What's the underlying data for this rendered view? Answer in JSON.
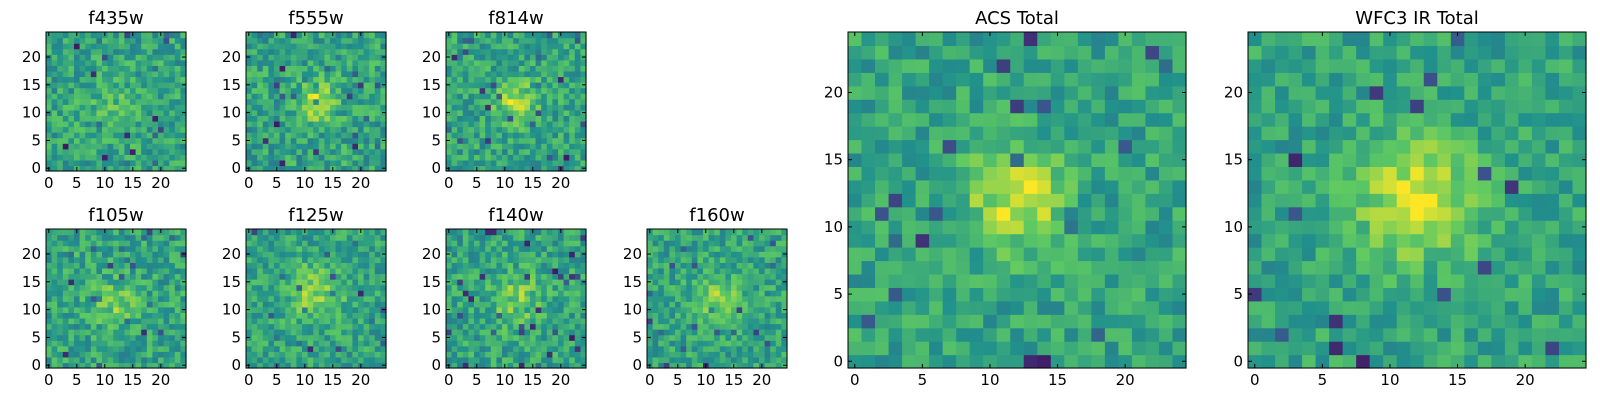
{
  "colormap": [
    "#440154",
    "#3b528b",
    "#21918c",
    "#5ec962",
    "#fde725"
  ],
  "chart_data": [
    {
      "type": "heatmap",
      "title": "f435w",
      "xlim": [
        0,
        24
      ],
      "ylim": [
        0,
        24
      ],
      "xticks": [
        "0",
        "5",
        "10",
        "15",
        "20"
      ],
      "yticks": [
        "0",
        "5",
        "10",
        "15",
        "20"
      ],
      "grid": false,
      "peak": {
        "x": 12,
        "y": 11,
        "amplitude": 0.1,
        "width": 3.5
      },
      "noise": 0.16,
      "seed": 11
    },
    {
      "type": "heatmap",
      "title": "f555w",
      "xlim": [
        0,
        24
      ],
      "ylim": [
        0,
        24
      ],
      "xticks": [
        "0",
        "5",
        "10",
        "15",
        "20"
      ],
      "yticks": [
        "0",
        "5",
        "10",
        "15",
        "20"
      ],
      "grid": false,
      "peak": {
        "x": 12,
        "y": 12,
        "amplitude": 0.28,
        "width": 2.6
      },
      "noise": 0.17,
      "seed": 23
    },
    {
      "type": "heatmap",
      "title": "f814w",
      "xlim": [
        0,
        24
      ],
      "ylim": [
        0,
        24
      ],
      "xticks": [
        "0",
        "5",
        "10",
        "15",
        "20"
      ],
      "yticks": [
        "0",
        "5",
        "10",
        "15",
        "20"
      ],
      "grid": false,
      "peak": {
        "x": 12,
        "y": 12,
        "amplitude": 0.3,
        "width": 2.6
      },
      "noise": 0.16,
      "seed": 37
    },
    {
      "type": "heatmap",
      "title": "f105w",
      "xlim": [
        0,
        24
      ],
      "ylim": [
        0,
        24
      ],
      "xticks": [
        "0",
        "5",
        "10",
        "15",
        "20"
      ],
      "yticks": [
        "0",
        "5",
        "10",
        "15",
        "20"
      ],
      "grid": false,
      "peak": {
        "x": 12,
        "y": 11,
        "amplitude": 0.18,
        "width": 3.0
      },
      "noise": 0.16,
      "seed": 41
    },
    {
      "type": "heatmap",
      "title": "f125w",
      "xlim": [
        0,
        24
      ],
      "ylim": [
        0,
        24
      ],
      "xticks": [
        "0",
        "5",
        "10",
        "15",
        "20"
      ],
      "yticks": [
        "0",
        "5",
        "10",
        "15",
        "20"
      ],
      "grid": false,
      "peak": {
        "x": 12,
        "y": 13,
        "amplitude": 0.22,
        "width": 3.5
      },
      "noise": 0.15,
      "seed": 53
    },
    {
      "type": "heatmap",
      "title": "f140w",
      "xlim": [
        0,
        24
      ],
      "ylim": [
        0,
        24
      ],
      "xticks": [
        "0",
        "5",
        "10",
        "15",
        "20"
      ],
      "yticks": [
        "0",
        "5",
        "10",
        "15",
        "20"
      ],
      "grid": false,
      "peak": {
        "x": 12,
        "y": 12,
        "amplitude": 0.2,
        "width": 3.2
      },
      "noise": 0.16,
      "seed": 67
    },
    {
      "type": "heatmap",
      "title": "f160w",
      "xlim": [
        0,
        24
      ],
      "ylim": [
        0,
        24
      ],
      "xticks": [
        "0",
        "5",
        "10",
        "15",
        "20"
      ],
      "yticks": [
        "0",
        "5",
        "10",
        "15",
        "20"
      ],
      "grid": false,
      "peak": {
        "x": 12,
        "y": 12,
        "amplitude": 0.24,
        "width": 3.0
      },
      "noise": 0.15,
      "seed": 79
    },
    {
      "type": "heatmap",
      "title": "ACS Total",
      "xlim": [
        0,
        24
      ],
      "ylim": [
        0,
        24
      ],
      "xticks": [
        "0",
        "5",
        "10",
        "15",
        "20"
      ],
      "yticks": [
        "0",
        "5",
        "10",
        "15",
        "20"
      ],
      "grid": false,
      "peak": {
        "x": 12,
        "y": 12,
        "amplitude": 0.36,
        "width": 2.5
      },
      "noise": 0.14,
      "seed": 97
    },
    {
      "type": "heatmap",
      "title": "WFC3 IR Total",
      "xlim": [
        0,
        24
      ],
      "ylim": [
        0,
        24
      ],
      "xticks": [
        "0",
        "5",
        "10",
        "15",
        "20"
      ],
      "yticks": [
        "0",
        "5",
        "10",
        "15",
        "20"
      ],
      "grid": false,
      "peak": {
        "x": 12,
        "y": 12,
        "amplitude": 0.4,
        "width": 3.0
      },
      "noise": 0.13,
      "seed": 113
    }
  ]
}
